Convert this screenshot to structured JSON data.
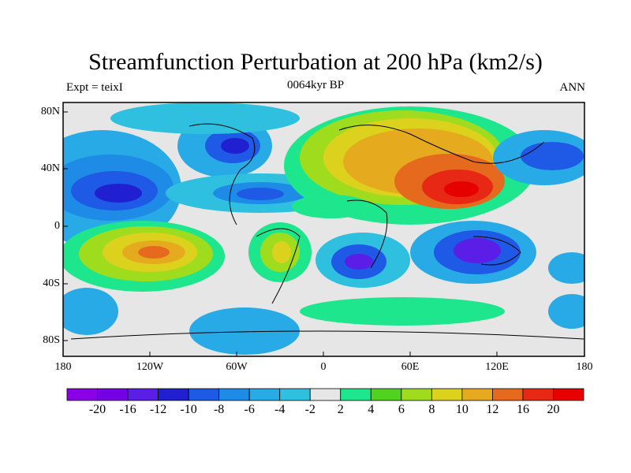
{
  "header": {
    "title": "Streamfunction Perturbation at 200 hPa (km2/s)",
    "left_label": "Expt = teixI",
    "center_label": "0064kyr BP",
    "right_label": "ANN"
  },
  "axes": {
    "y_ticks": [
      "80N",
      "40N",
      "0",
      "40S",
      "80S"
    ],
    "x_ticks": [
      "180",
      "120W",
      "60W",
      "0",
      "60E",
      "120E",
      "180"
    ]
  },
  "colorbar": {
    "labels": [
      "-20",
      "-16",
      "-12",
      "-10",
      "-8",
      "-6",
      "-4",
      "-2",
      "2",
      "4",
      "6",
      "8",
      "10",
      "12",
      "16",
      "20"
    ],
    "colors": [
      "#8a00e6",
      "#7400e6",
      "#5a1ee6",
      "#2020d0",
      "#1e5ae6",
      "#1e8ce6",
      "#28aae6",
      "#2fc0e0",
      "#e6e6e6",
      "#1ee68c",
      "#50d21e",
      "#a0dc1e",
      "#dcd21e",
      "#e6aa1e",
      "#e66a1e",
      "#e62814",
      "#e60000"
    ]
  }
}
